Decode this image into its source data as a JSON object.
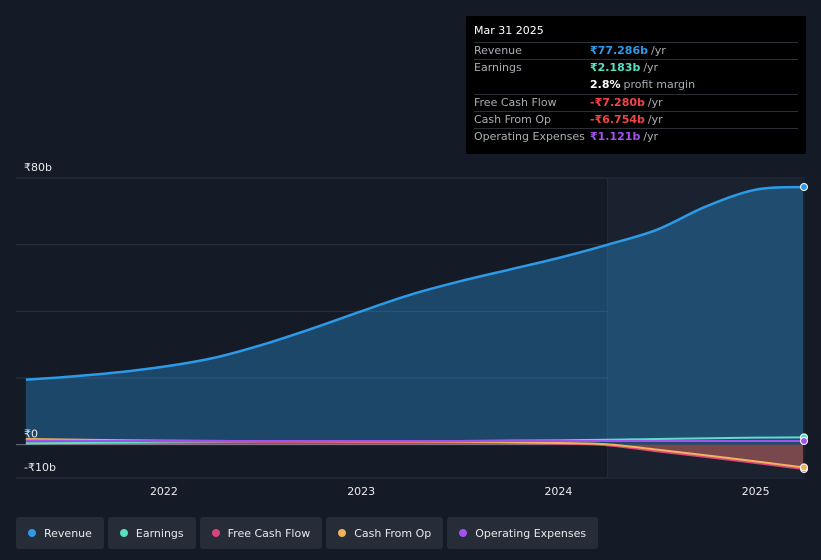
{
  "tooltip": {
    "date": "Mar 31 2025",
    "rows": [
      {
        "label": "Revenue",
        "value": "₹77.286b",
        "unit": "/yr",
        "color": "#2d9ae8"
      },
      {
        "label": "Earnings",
        "value": "₹2.183b",
        "unit": "/yr",
        "color": "#58e0c4"
      },
      {
        "label": "",
        "value": "2.8%",
        "unit": "profit margin",
        "color": "#ffffff"
      },
      {
        "label": "Free Cash Flow",
        "value": "-₹7.280b",
        "unit": "/yr",
        "color": "#ef4545"
      },
      {
        "label": "Cash From Op",
        "value": "-₹6.754b",
        "unit": "/yr",
        "color": "#ef4545"
      },
      {
        "label": "Operating Expenses",
        "value": "₹1.121b",
        "unit": "/yr",
        "color": "#a351f0"
      }
    ]
  },
  "legend": [
    {
      "label": "Revenue",
      "color": "#2d9ae8"
    },
    {
      "label": "Earnings",
      "color": "#58e0c4"
    },
    {
      "label": "Free Cash Flow",
      "color": "#d9457a"
    },
    {
      "label": "Cash From Op",
      "color": "#f0b35c"
    },
    {
      "label": "Operating Expenses",
      "color": "#a351f0"
    }
  ],
  "chart_data": {
    "type": "area",
    "title": "",
    "xlabel": "",
    "ylabel": "",
    "y_tick_labels": [
      "₹80b",
      "₹0",
      "-₹10b"
    ],
    "y_ticks": [
      80,
      0,
      -10
    ],
    "ylim": [
      -10,
      80
    ],
    "x_tick_labels": [
      "2022",
      "2023",
      "2024",
      "2025"
    ],
    "x_ticks": [
      2022,
      2023,
      2024,
      2025
    ],
    "xlim": [
      2021.25,
      2025.25
    ],
    "highlight_from": 2024.25,
    "series": [
      {
        "name": "Revenue",
        "color": "#2d9ae8",
        "x": [
          2021.3,
          2021.5,
          2021.75,
          2022.0,
          2022.25,
          2022.5,
          2022.75,
          2023.0,
          2023.25,
          2023.5,
          2023.75,
          2024.0,
          2024.25,
          2024.5,
          2024.75,
          2025.0,
          2025.25
        ],
        "values": [
          19.5,
          20.3,
          21.6,
          23.4,
          26.0,
          30.0,
          34.8,
          40.0,
          45.0,
          49.0,
          52.5,
          56.0,
          60.0,
          64.5,
          71.5,
          76.5,
          77.3
        ]
      },
      {
        "name": "Earnings",
        "color": "#58e0c4",
        "x": [
          2021.3,
          2022.0,
          2022.5,
          2023.0,
          2023.5,
          2024.0,
          2024.5,
          2025.0,
          2025.25
        ],
        "values": [
          0.4,
          0.7,
          0.9,
          1.0,
          1.1,
          1.3,
          1.7,
          2.1,
          2.2
        ]
      },
      {
        "name": "Free Cash Flow",
        "color": "#d9457a",
        "x": [
          2021.3,
          2022.0,
          2022.5,
          2023.0,
          2023.5,
          2024.0,
          2024.25,
          2024.5,
          2024.75,
          2025.0,
          2025.25
        ],
        "values": [
          1.5,
          1.0,
          0.9,
          0.8,
          0.7,
          0.3,
          -0.2,
          -2.0,
          -3.7,
          -5.5,
          -7.3
        ]
      },
      {
        "name": "Cash From Op",
        "color": "#f0b35c",
        "x": [
          2021.3,
          2022.0,
          2022.5,
          2023.0,
          2023.5,
          2024.0,
          2024.25,
          2024.5,
          2024.75,
          2025.0,
          2025.25
        ],
        "values": [
          1.7,
          1.2,
          1.1,
          1.0,
          0.9,
          0.5,
          0.1,
          -1.5,
          -3.2,
          -5.0,
          -6.8
        ]
      },
      {
        "name": "Operating Expenses",
        "color": "#a351f0",
        "x": [
          2021.3,
          2022.0,
          2022.5,
          2023.0,
          2023.5,
          2024.0,
          2024.5,
          2025.0,
          2025.25
        ],
        "values": [
          1.2,
          1.1,
          1.1,
          1.1,
          1.1,
          1.1,
          1.1,
          1.1,
          1.1
        ]
      }
    ]
  }
}
